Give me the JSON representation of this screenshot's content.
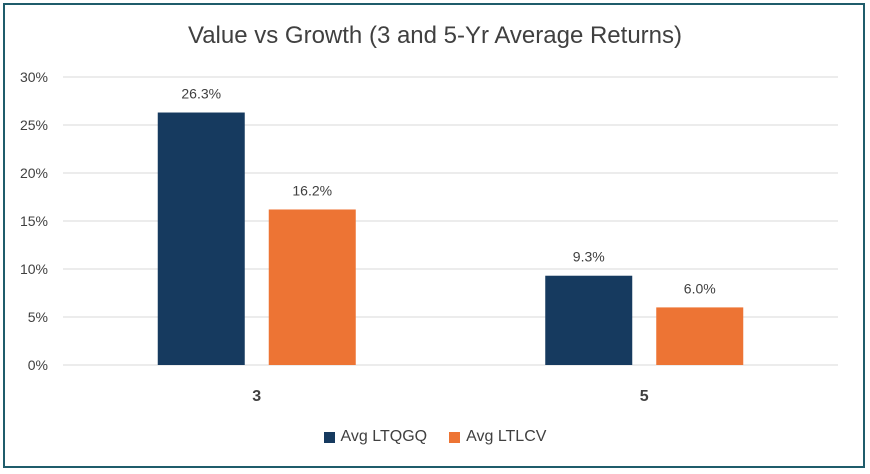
{
  "chart_data": {
    "type": "bar",
    "title": "Value vs Growth (3 and 5-Yr Average Returns)",
    "xlabel": "",
    "ylabel": "",
    "categories": [
      "3",
      "5"
    ],
    "series": [
      {
        "name": "Avg LTQGQ",
        "values": [
          26.3,
          9.3
        ],
        "labels": [
          "26.3%",
          "9.3%"
        ],
        "color": "#163a5f"
      },
      {
        "name": "Avg LTLCV",
        "values": [
          16.2,
          6.0
        ],
        "labels": [
          "16.2%",
          "6.0%"
        ],
        "color": "#ed7434"
      }
    ],
    "ylim": [
      0,
      30
    ],
    "yticks": [
      0,
      5,
      10,
      15,
      20,
      25,
      30
    ],
    "ytick_labels": [
      "0%",
      "5%",
      "10%",
      "15%",
      "20%",
      "25%",
      "30%"
    ],
    "grid": true,
    "legend_position": "bottom"
  },
  "colors": {
    "gridline": "#d9d9d9",
    "frame": "#1f5c6b",
    "text": "#404040"
  }
}
